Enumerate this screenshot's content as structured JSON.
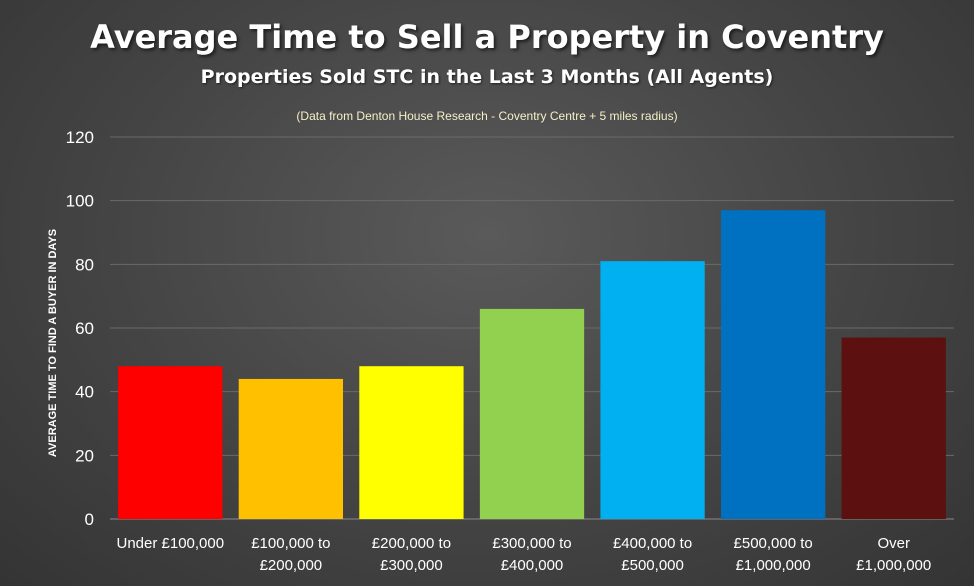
{
  "title": "Average Time to Sell a Property in Coventry",
  "subtitle": "Properties Sold STC in the Last 3 Months (All Agents)",
  "note": "(Data from Denton House Research - Coventry Centre + 5 miles radius)",
  "chart_data": {
    "type": "bar",
    "categories": [
      [
        "Under £100,000"
      ],
      [
        "£100,000 to",
        "£200,000"
      ],
      [
        "£200,000 to",
        "£300,000"
      ],
      [
        "£300,000 to",
        "£400,000"
      ],
      [
        "£400,000 to",
        "£500,000"
      ],
      [
        "£500,000 to",
        "£1,000,000"
      ],
      [
        "Over",
        "£1,000,000"
      ]
    ],
    "values": [
      48,
      44,
      48,
      66,
      81,
      97,
      57
    ],
    "colors": [
      "#ff0000",
      "#ffc000",
      "#ffff00",
      "#92d050",
      "#00b0f0",
      "#0070c0",
      "#5c1010"
    ],
    "ylabel": "AVERAGE TIME TO FIND A BUYER IN DAYS",
    "xlabel": "",
    "ylim": [
      0,
      120
    ],
    "yticks": [
      0,
      20,
      40,
      60,
      80,
      100,
      120
    ],
    "grid": true
  }
}
